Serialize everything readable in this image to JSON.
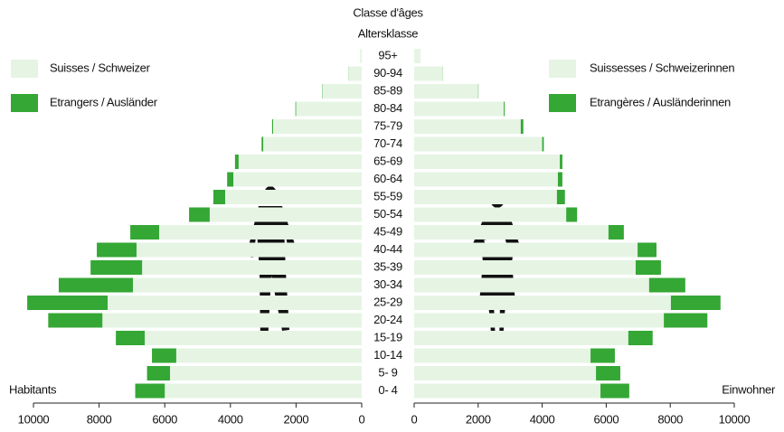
{
  "chart_data": {
    "type": "pyramid",
    "title": "Classe d'âges",
    "subtitle": "Altersklasse",
    "left_label": "Habitants",
    "right_label": "Einwohner",
    "categories": [
      "95+",
      "90-94",
      "85-89",
      "80-84",
      "75-79",
      "70-74",
      "65-69",
      "60-64",
      "55-59",
      "50-54",
      "45-49",
      "40-44",
      "35-39",
      "30-34",
      "25-29",
      "20-24",
      "15-19",
      "10-14",
      "5- 9",
      "0- 4"
    ],
    "series": [
      {
        "name": "Suisses / Schweizer",
        "side": "left",
        "color": "#e6f4e4",
        "values": [
          50,
          400,
          1200,
          2000,
          2700,
          3000,
          3750,
          3910,
          4160,
          4630,
          6170,
          6860,
          6690,
          6970,
          7740,
          7900,
          6610,
          5650,
          5840,
          6000
        ]
      },
      {
        "name": "Etrangers / Ausländer",
        "side": "left",
        "color": "#35a735",
        "values": [
          0,
          5,
          10,
          20,
          30,
          50,
          110,
          190,
          360,
          630,
          880,
          1210,
          1570,
          2260,
          2450,
          1650,
          880,
          740,
          700,
          900
        ]
      },
      {
        "name": "Suissesses / Schweizerinnen",
        "side": "right",
        "color": "#e6f4e4",
        "values": [
          200,
          900,
          2000,
          2800,
          3330,
          4000,
          4550,
          4490,
          4460,
          4750,
          6070,
          6980,
          6920,
          7340,
          8020,
          7800,
          6690,
          5510,
          5680,
          5820
        ]
      },
      {
        "name": "Etrangères / Ausländerinnen",
        "side": "right",
        "color": "#35a735",
        "values": [
          0,
          5,
          10,
          30,
          80,
          50,
          80,
          140,
          250,
          340,
          480,
          590,
          790,
          1130,
          1550,
          1360,
          760,
          760,
          760,
          900
        ]
      }
    ],
    "xlim": [
      0,
      10000
    ],
    "xticks": [
      0,
      2000,
      4000,
      6000,
      8000,
      10000
    ]
  }
}
